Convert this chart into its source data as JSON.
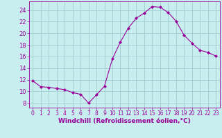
{
  "x": [
    0,
    1,
    2,
    3,
    4,
    5,
    6,
    7,
    8,
    9,
    10,
    11,
    12,
    13,
    14,
    15,
    16,
    17,
    18,
    19,
    20,
    21,
    22,
    23
  ],
  "y": [
    11.8,
    10.8,
    10.7,
    10.5,
    10.3,
    9.8,
    9.5,
    8.0,
    9.4,
    10.9,
    15.6,
    18.5,
    20.9,
    22.6,
    23.5,
    24.6,
    24.5,
    23.6,
    22.1,
    19.7,
    18.3,
    17.1,
    16.7,
    16.1
  ],
  "line_color": "#990099",
  "marker": "D",
  "marker_size": 2,
  "bg_color": "#c8eef0",
  "grid_color": "#a0cdd0",
  "axis_color": "#990099",
  "tick_color": "#990099",
  "xlabel": "Windchill (Refroidissement éolien,°C)",
  "xlabel_fontsize": 6.5,
  "ylabel_ticks": [
    8,
    10,
    12,
    14,
    16,
    18,
    20,
    22,
    24
  ],
  "ylim": [
    7.2,
    25.5
  ],
  "xlim": [
    -0.5,
    23.5
  ],
  "tick_fontsize": 5.5,
  "ytick_fontsize": 6
}
